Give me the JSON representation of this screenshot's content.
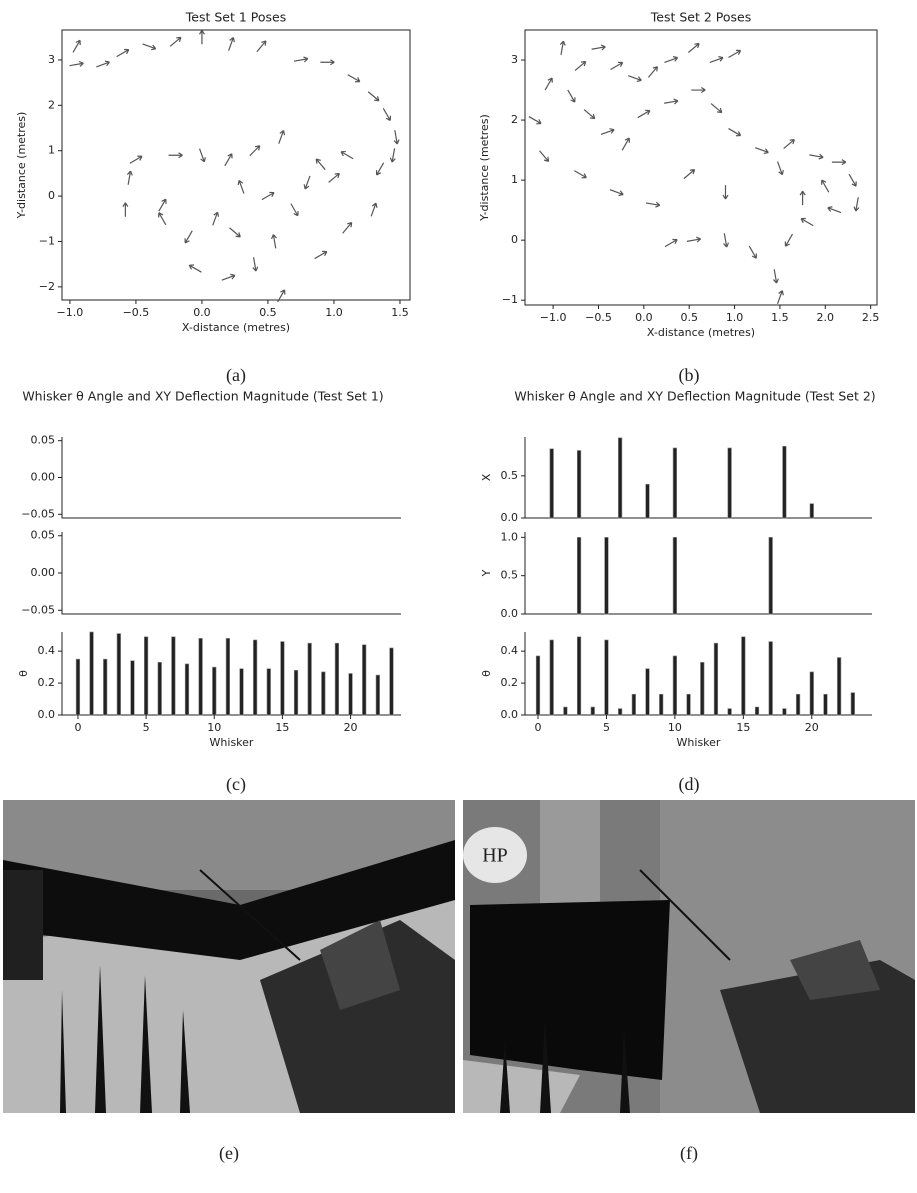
{
  "chart_data": [
    {
      "type": "scatter",
      "title": "Test Set 1 Poses",
      "xlabel": "X-distance (metres)",
      "ylabel": "Y-distance (metres)",
      "color": "#555555",
      "x": [
        -0.95,
        -0.95,
        -0.75,
        -0.6,
        -0.4,
        -0.2,
        0.0,
        0.22,
        0.45,
        0.75,
        0.95,
        1.15,
        1.3,
        1.4,
        1.47,
        1.45,
        1.35,
        1.1,
        0.9,
        0.6,
        0.4,
        0.2,
        0.0,
        -0.2,
        -0.5,
        -0.55,
        -0.58,
        -0.3,
        -0.1,
        0.1,
        0.3,
        0.5,
        0.7,
        0.55,
        0.4,
        0.6,
        0.2,
        -0.05,
        0.9,
        1.1,
        1.3,
        0.8,
        1.0,
        -0.3,
        0.25
      ],
      "y": [
        3.3,
        2.9,
        2.9,
        3.15,
        3.3,
        3.4,
        3.5,
        3.35,
        3.3,
        3.0,
        2.95,
        2.6,
        2.2,
        1.8,
        1.3,
        0.9,
        0.6,
        0.9,
        0.7,
        1.3,
        1.0,
        0.8,
        0.9,
        0.9,
        0.8,
        0.4,
        -0.3,
        -0.5,
        -0.9,
        -0.5,
        0.2,
        0.0,
        -0.3,
        -1.0,
        -1.5,
        -2.2,
        -1.8,
        -1.6,
        -1.3,
        -0.7,
        -0.3,
        0.3,
        0.4,
        -0.2,
        -0.8
      ],
      "angle": [
        60,
        10,
        20,
        30,
        -20,
        40,
        90,
        70,
        50,
        10,
        0,
        -30,
        -40,
        -60,
        -80,
        -100,
        -120,
        150,
        130,
        70,
        45,
        60,
        -70,
        0,
        30,
        80,
        90,
        120,
        -120,
        70,
        110,
        30,
        -60,
        100,
        -80,
        60,
        20,
        150,
        30,
        50,
        70,
        -110,
        40,
        60,
        -40
      ],
      "xlim": [
        -1.06,
        1.576
      ],
      "ylim": [
        -2.29,
        3.66
      ],
      "xticks": [
        {
          "value": -1.0,
          "label": "−1.0"
        },
        {
          "value": -0.5,
          "label": "−0.5"
        },
        {
          "value": 0.0,
          "label": "0.0"
        },
        0.5,
        {
          "value": 1.0,
          "label": "1.0"
        },
        1.5
      ],
      "yticks": [
        {
          "value": -2,
          "label": "−2"
        },
        {
          "value": -1,
          "label": "−1"
        },
        0,
        1,
        2,
        3
      ]
    },
    {
      "type": "scatter",
      "title": "Test Set 2 Poses",
      "xlabel": "X-distance (metres)",
      "ylabel": "Y-distance (metres)",
      "color": "#555555",
      "x": [
        -1.2,
        -1.05,
        -0.9,
        -0.7,
        -0.5,
        -0.3,
        -0.1,
        0.1,
        0.3,
        0.55,
        0.8,
        1.0,
        -0.8,
        -0.6,
        -0.4,
        -0.2,
        0.0,
        0.3,
        0.6,
        0.8,
        1.0,
        1.3,
        1.5,
        1.6,
        1.9,
        2.15,
        2.3,
        2.35,
        2.1,
        1.8,
        1.6,
        1.45,
        1.5,
        1.2,
        0.9,
        0.9,
        0.5,
        -1.1,
        -0.7,
        -0.3,
        0.1,
        0.3,
        0.55,
        2.0,
        1.75
      ],
      "y": [
        2.0,
        2.6,
        3.2,
        2.9,
        3.2,
        2.9,
        2.7,
        2.8,
        3.0,
        3.2,
        3.0,
        3.1,
        2.4,
        2.1,
        1.8,
        1.6,
        2.1,
        2.3,
        2.5,
        2.2,
        1.8,
        1.5,
        1.2,
        1.6,
        1.4,
        1.3,
        1.0,
        0.6,
        0.5,
        0.3,
        0.0,
        -0.6,
        -0.95,
        -0.2,
        0.0,
        0.8,
        1.1,
        1.4,
        1.1,
        0.8,
        0.6,
        -0.05,
        0.0,
        0.9,
        0.7
      ],
      "angle": [
        -30,
        60,
        80,
        40,
        10,
        30,
        -20,
        50,
        20,
        40,
        20,
        30,
        -60,
        -40,
        20,
        60,
        30,
        10,
        0,
        -40,
        -30,
        -20,
        -70,
        40,
        -10,
        0,
        -60,
        -100,
        160,
        150,
        -120,
        -80,
        70,
        -60,
        -80,
        -90,
        40,
        -50,
        -30,
        -20,
        -10,
        30,
        10,
        120,
        90
      ],
      "xlim": [
        -1.31,
        2.57
      ],
      "ylim": [
        -1.08,
        3.5
      ],
      "xticks": [
        {
          "value": -1.0,
          "label": "−1.0"
        },
        {
          "value": -0.5,
          "label": "−0.5"
        },
        {
          "value": 0.0,
          "label": "0.0"
        },
        0.5,
        {
          "value": 1.0,
          "label": "1.0"
        },
        1.5,
        {
          "value": 2.0,
          "label": "2.0"
        },
        2.5
      ],
      "yticks": [
        {
          "value": -1,
          "label": "−1"
        },
        0,
        1,
        2,
        3
      ]
    },
    {
      "type": "bar",
      "title": "Whisker θ Angle and XY Deflection Magnitude (Test Set 1)",
      "xlabel": "Whisker",
      "color": "#222222",
      "x": [
        0,
        1,
        2,
        3,
        4,
        5,
        6,
        7,
        8,
        9,
        10,
        11,
        12,
        13,
        14,
        15,
        16,
        17,
        18,
        19,
        20,
        21,
        22,
        23
      ],
      "xlim": [
        -1.17,
        23.7
      ],
      "xticks": [
        0,
        5,
        10,
        15,
        20
      ],
      "subplots": [
        {
          "ylim": [
            -0.055,
            0.055
          ],
          "yticks": [
            {
              "value": -0.05,
              "label": "−0.05"
            },
            {
              "value": 0.0,
              "label": "0.00"
            },
            0.05
          ],
          "values": [
            0,
            0,
            0,
            0,
            0,
            0,
            0,
            0,
            0,
            0,
            0,
            0,
            0,
            0,
            0,
            0,
            0,
            0,
            0,
            0,
            0,
            0,
            0,
            0
          ]
        },
        {
          "ylim": [
            -0.055,
            0.055
          ],
          "yticks": [
            {
              "value": -0.05,
              "label": "−0.05"
            },
            {
              "value": 0.0,
              "label": "0.00"
            },
            0.05
          ],
          "values": [
            0,
            0,
            0,
            0,
            0,
            0,
            0,
            0,
            0,
            0,
            0,
            0,
            0,
            0,
            0,
            0,
            0,
            0,
            0,
            0,
            0,
            0,
            0,
            0
          ]
        },
        {
          "ylabel": "θ",
          "ylim": [
            0,
            0.52
          ],
          "yticks": [
            {
              "value": 0.0,
              "label": "0.0"
            },
            0.2,
            0.4
          ],
          "values": [
            0.35,
            0.52,
            0.35,
            0.51,
            0.34,
            0.49,
            0.33,
            0.49,
            0.32,
            0.48,
            0.3,
            0.48,
            0.29,
            0.47,
            0.29,
            0.46,
            0.28,
            0.45,
            0.27,
            0.45,
            0.26,
            0.44,
            0.25,
            0.42
          ]
        }
      ]
    },
    {
      "type": "bar",
      "title": "Whisker θ Angle and XY Deflection Magnitude (Test Set 2)",
      "xlabel": "Whisker",
      "color": "#222222",
      "x": [
        0,
        1,
        2,
        3,
        4,
        5,
        6,
        7,
        8,
        9,
        10,
        11,
        12,
        13,
        14,
        15,
        16,
        17,
        18,
        19,
        20,
        21,
        22,
        23
      ],
      "xlim": [
        -0.95,
        24.4
      ],
      "xticks": [
        0,
        5,
        10,
        15,
        20
      ],
      "subplots": [
        {
          "ylabel": "X",
          "ylim": [
            0,
            0.96
          ],
          "yticks": [
            {
              "value": 0.0,
              "label": "0.0"
            },
            0.5
          ],
          "values": [
            0,
            0.82,
            0,
            0.8,
            0,
            0,
            0.95,
            0,
            0.4,
            0,
            0.83,
            0,
            0,
            0,
            0.83,
            0,
            0,
            0,
            0.85,
            0,
            0.17,
            0,
            0,
            0
          ]
        },
        {
          "ylabel": "Y",
          "ylim": [
            0,
            1.07
          ],
          "yticks": [
            {
              "value": 0.0,
              "label": "0.0"
            },
            0.5,
            {
              "value": 1.0,
              "label": "1.0"
            }
          ],
          "values": [
            0,
            0,
            0,
            1.0,
            0,
            1.0,
            0,
            0,
            0,
            0,
            1.0,
            0,
            0,
            0,
            0,
            0,
            0,
            1.0,
            0,
            0,
            0,
            0,
            0,
            0
          ]
        },
        {
          "ylabel": "θ",
          "ylim": [
            0,
            0.52
          ],
          "yticks": [
            {
              "value": 0.0,
              "label": "0.0"
            },
            0.2,
            0.4
          ],
          "values": [
            0.37,
            0.47,
            0.05,
            0.49,
            0.05,
            0.47,
            0.04,
            0.13,
            0.29,
            0.13,
            0.37,
            0.13,
            0.33,
            0.45,
            0.04,
            0.49,
            0.05,
            0.46,
            0.04,
            0.13,
            0.27,
            0.13,
            0.36,
            0.14
          ]
        }
      ]
    }
  ],
  "captions": [
    "(a)",
    "(b)",
    "(c)",
    "(d)",
    "(e)",
    "(f)"
  ]
}
